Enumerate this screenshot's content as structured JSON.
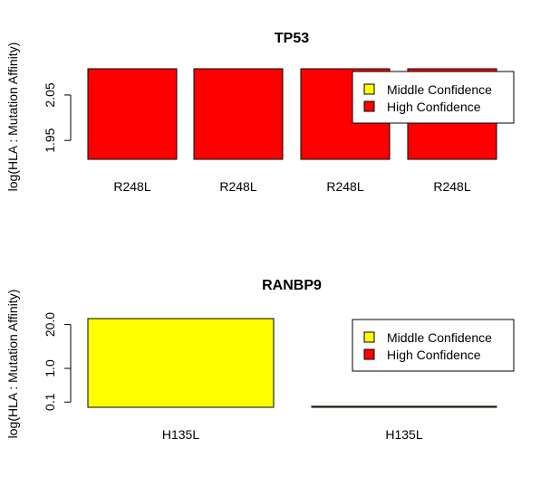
{
  "colors": {
    "middle_confidence": "#ffff00",
    "high_confidence": "#ff0000",
    "axis": "#000000"
  },
  "chart_data": [
    {
      "type": "bar",
      "title": "TP53",
      "xlabel": "",
      "ylabel": "log(HLA : Mutation Affinity)",
      "y_scale": "log",
      "ylim": [
        1.91,
        2.11
      ],
      "y_ticks": [
        1.95,
        2.05
      ],
      "y_tick_labels": [
        "1.95",
        "2.05"
      ],
      "categories": [
        "R248L",
        "R248L",
        "R248L",
        "R248L"
      ],
      "values": [
        2.11,
        2.11,
        2.11,
        2.11
      ],
      "bar_confidence": [
        "High Confidence",
        "High Confidence",
        "High Confidence",
        "High Confidence"
      ],
      "legend": {
        "position": "top-right",
        "entries": [
          {
            "label": "Middle Confidence",
            "color": "#ffff00"
          },
          {
            "label": "High Confidence",
            "color": "#ff0000"
          }
        ]
      },
      "grid": false
    },
    {
      "type": "bar",
      "title": "RANBP9",
      "xlabel": "",
      "ylabel": "log(HLA : Mutation Affinity)",
      "y_scale": "log",
      "ylim": [
        0.07,
        30
      ],
      "y_ticks": [
        0.1,
        1.0,
        20.0
      ],
      "y_tick_labels": [
        "0.1",
        "1.0",
        "20.0"
      ],
      "categories": [
        "H135L",
        "H135L"
      ],
      "values": [
        30,
        0.075
      ],
      "bar_confidence": [
        "Middle Confidence",
        "Middle Confidence"
      ],
      "legend": {
        "position": "top-right",
        "entries": [
          {
            "label": "Middle Confidence",
            "color": "#ffff00"
          },
          {
            "label": "High Confidence",
            "color": "#ff0000"
          }
        ]
      },
      "grid": false
    }
  ]
}
